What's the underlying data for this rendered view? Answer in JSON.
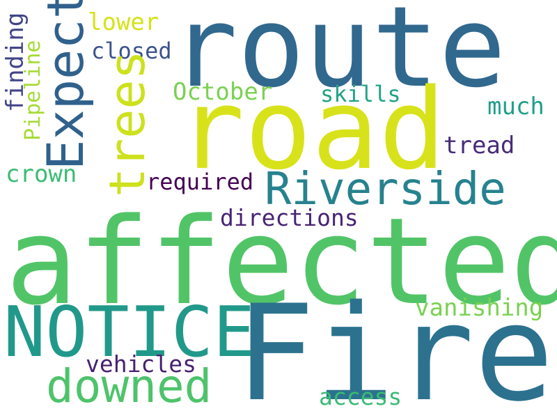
{
  "word_cloud": {
    "words": {
      "route": {
        "text": "route",
        "color": "#31688e"
      },
      "road": {
        "text": "road",
        "color": "#d8e21a"
      },
      "affected": {
        "text": "affected",
        "color": "#52c468"
      },
      "fire": {
        "text": "Fire",
        "color": "#2c728e"
      },
      "notice": {
        "text": "NOTICE",
        "color": "#21998a"
      },
      "riverside": {
        "text": "Riverside",
        "color": "#26828e"
      },
      "expect": {
        "text": "Expect",
        "color": "#30618d"
      },
      "trees": {
        "text": "trees",
        "color": "#cde11d"
      },
      "downed": {
        "text": "downed",
        "color": "#4ec36b"
      },
      "lower": {
        "text": "lower",
        "color": "#d6e21b"
      },
      "closed": {
        "text": "closed",
        "color": "#3a538b"
      },
      "october": {
        "text": "October",
        "color": "#7ad151"
      },
      "skills": {
        "text": "skills",
        "color": "#20a386"
      },
      "much": {
        "text": "much",
        "color": "#1f9f88"
      },
      "tread": {
        "text": "tread",
        "color": "#472b7a"
      },
      "crown": {
        "text": "crown",
        "color": "#3cbc75"
      },
      "required": {
        "text": "required",
        "color": "#440154"
      },
      "directions": {
        "text": "directions",
        "color": "#482374"
      },
      "vanishing": {
        "text": "vanishing",
        "color": "#7ad151"
      },
      "vehicles": {
        "text": "vehicles",
        "color": "#481f70"
      },
      "access": {
        "text": "access",
        "color": "#3bbb75"
      },
      "finding": {
        "text": "finding",
        "color": "#414487"
      },
      "pipeline": {
        "text": "Pipeline",
        "color": "#a5db36"
      }
    }
  }
}
